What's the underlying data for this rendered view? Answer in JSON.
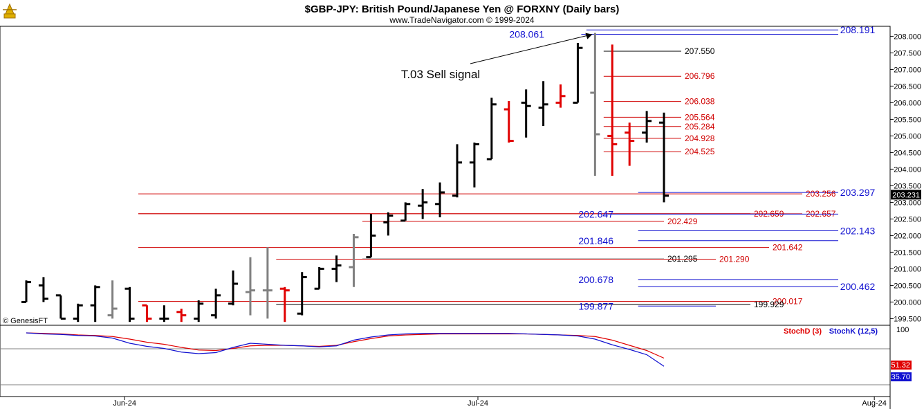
{
  "header": {
    "title": "$GBP-JPY:  British Pound/Japanese Yen @ FORXNY  (Daily bars)",
    "subtitle": "www.TradeNavigator.com © 1999-2024",
    "watermark": "© GenesisFT"
  },
  "colors": {
    "up_bar": "#000000",
    "down_bar": "#e00000",
    "neutral_bar": "#808080",
    "blue_level": "#1010d0",
    "red_level": "#d00000",
    "black_level": "#000000"
  },
  "chart_data": [
    {
      "type": "ohlc",
      "title": "$GBP-JPY:  British Pound/Japanese Yen @ FORXNY  (Daily bars)",
      "ylim": [
        199.3,
        208.3
      ],
      "y_ticks": [
        "208.000",
        "207.500",
        "207.000",
        "206.500",
        "206.000",
        "205.500",
        "205.000",
        "204.500",
        "204.000",
        "203.500",
        "203.000",
        "202.500",
        "202.000",
        "201.500",
        "201.000",
        "200.500",
        "200.000",
        "199.500"
      ],
      "x_ticks": [
        {
          "label": "Jun-24",
          "index": 4.5
        },
        {
          "label": "Jul-24",
          "index": 25
        },
        {
          "label": "Aug-24",
          "index": 48
        }
      ],
      "last_price": "203.231",
      "bars": [
        {
          "i": 0,
          "o": 200.0,
          "h": 200.65,
          "l": 200.0,
          "c": 200.6,
          "color": "black"
        },
        {
          "i": 1,
          "o": 200.5,
          "h": 200.75,
          "l": 200.0,
          "c": 200.1,
          "color": "black"
        },
        {
          "i": 2,
          "o": 200.2,
          "h": 200.2,
          "l": 199.5,
          "c": 199.5,
          "color": "black"
        },
        {
          "i": 3,
          "o": 199.5,
          "h": 199.95,
          "l": 199.4,
          "c": 199.9,
          "color": "black"
        },
        {
          "i": 4,
          "o": 199.9,
          "h": 200.5,
          "l": 199.4,
          "c": 200.45,
          "color": "black"
        },
        {
          "i": 5,
          "o": 199.6,
          "h": 200.65,
          "l": 199.5,
          "c": 199.8,
          "color": "gray"
        },
        {
          "i": 6,
          "o": 200.4,
          "h": 200.45,
          "l": 199.4,
          "c": 199.5,
          "color": "black"
        },
        {
          "i": 7,
          "o": 199.9,
          "h": 199.9,
          "l": 199.4,
          "c": 199.5,
          "color": "red"
        },
        {
          "i": 8,
          "o": 199.5,
          "h": 199.9,
          "l": 199.4,
          "c": 199.5,
          "color": "black"
        },
        {
          "i": 9,
          "o": 199.7,
          "h": 199.8,
          "l": 199.4,
          "c": 199.6,
          "color": "red"
        },
        {
          "i": 10,
          "o": 199.5,
          "h": 200.05,
          "l": 199.4,
          "c": 199.95,
          "color": "black"
        },
        {
          "i": 11,
          "o": 199.6,
          "h": 200.4,
          "l": 199.5,
          "c": 200.2,
          "color": "black"
        },
        {
          "i": 12,
          "o": 199.95,
          "h": 200.95,
          "l": 199.9,
          "c": 200.55,
          "color": "black"
        },
        {
          "i": 13,
          "o": 200.3,
          "h": 201.35,
          "l": 199.6,
          "c": 200.35,
          "color": "gray"
        },
        {
          "i": 14,
          "o": 200.35,
          "h": 201.65,
          "l": 199.5,
          "c": 200.35,
          "color": "gray"
        },
        {
          "i": 15,
          "o": 200.4,
          "h": 200.45,
          "l": 199.4,
          "c": 200.35,
          "color": "red"
        },
        {
          "i": 16,
          "o": 199.65,
          "h": 200.9,
          "l": 199.6,
          "c": 200.75,
          "color": "black"
        },
        {
          "i": 17,
          "o": 200.4,
          "h": 201.05,
          "l": 200.4,
          "c": 201.0,
          "color": "black"
        },
        {
          "i": 18,
          "o": 201.0,
          "h": 201.4,
          "l": 200.6,
          "c": 201.1,
          "color": "black"
        },
        {
          "i": 19,
          "o": 201.05,
          "h": 202.05,
          "l": 200.45,
          "c": 201.95,
          "color": "gray"
        },
        {
          "i": 20,
          "o": 201.35,
          "h": 202.65,
          "l": 201.35,
          "c": 202.0,
          "color": "black"
        },
        {
          "i": 21,
          "o": 202.4,
          "h": 202.7,
          "l": 202.0,
          "c": 202.6,
          "color": "black"
        },
        {
          "i": 22,
          "o": 202.45,
          "h": 203.0,
          "l": 202.45,
          "c": 202.95,
          "color": "black"
        },
        {
          "i": 23,
          "o": 202.9,
          "h": 203.4,
          "l": 202.5,
          "c": 203.0,
          "color": "black"
        },
        {
          "i": 24,
          "o": 202.95,
          "h": 203.6,
          "l": 202.55,
          "c": 203.3,
          "color": "black"
        },
        {
          "i": 25,
          "o": 203.2,
          "h": 204.75,
          "l": 203.15,
          "c": 204.2,
          "color": "black"
        },
        {
          "i": 26,
          "o": 204.2,
          "h": 204.8,
          "l": 203.45,
          "c": 204.75,
          "color": "black"
        },
        {
          "i": 27,
          "o": 204.3,
          "h": 206.15,
          "l": 204.3,
          "c": 205.95,
          "color": "black"
        },
        {
          "i": 28,
          "o": 205.8,
          "h": 206.05,
          "l": 204.8,
          "c": 204.85,
          "color": "red"
        },
        {
          "i": 29,
          "o": 206.0,
          "h": 206.4,
          "l": 204.95,
          "c": 205.9,
          "color": "black"
        },
        {
          "i": 30,
          "o": 205.85,
          "h": 206.65,
          "l": 205.3,
          "c": 205.95,
          "color": "black"
        },
        {
          "i": 31,
          "o": 206.0,
          "h": 206.55,
          "l": 205.85,
          "c": 206.2,
          "color": "red"
        },
        {
          "i": 32,
          "o": 206.0,
          "h": 207.8,
          "l": 206.0,
          "c": 207.65,
          "color": "black"
        },
        {
          "i": 33,
          "o": 206.3,
          "h": 208.1,
          "l": 203.8,
          "c": 205.05,
          "color": "gray"
        },
        {
          "i": 34,
          "o": 205.0,
          "h": 207.75,
          "l": 203.8,
          "c": 204.75,
          "color": "red"
        },
        {
          "i": 35,
          "o": 205.1,
          "h": 205.4,
          "l": 204.1,
          "c": 204.85,
          "color": "red"
        },
        {
          "i": 36,
          "o": 205.1,
          "h": 205.75,
          "l": 204.8,
          "c": 205.45,
          "color": "black"
        },
        {
          "i": 37,
          "o": 205.4,
          "h": 205.7,
          "l": 203.0,
          "c": 203.2,
          "color": "black"
        }
      ],
      "levels": [
        {
          "value": 208.191,
          "label": "208.191",
          "color": "blue",
          "x0_i": 32.5,
          "x1": 1212,
          "label_side": "right"
        },
        {
          "value": 208.061,
          "label": "208.061",
          "color": "blue",
          "x0_i": 32.2,
          "x1": 1212,
          "label_side": "leftlabel",
          "label_x": 787
        },
        {
          "value": 207.55,
          "label": "207.550",
          "color": "black",
          "x0_i": 33.5,
          "x1": 985,
          "label_side": "end"
        },
        {
          "value": 206.796,
          "label": "206.796",
          "color": "red",
          "x0_i": 33.5,
          "x1": 985,
          "label_side": "end"
        },
        {
          "value": 206.038,
          "label": "206.038",
          "color": "red",
          "x0_i": 33.5,
          "x1": 985,
          "label_side": "end"
        },
        {
          "value": 205.564,
          "label": "205.564",
          "color": "red",
          "x0_i": 33.5,
          "x1": 985,
          "label_side": "end"
        },
        {
          "value": 205.284,
          "label": "205.284",
          "color": "red",
          "x0_i": 33.5,
          "x1": 985,
          "label_side": "end"
        },
        {
          "value": 204.928,
          "label": "204.928",
          "color": "red",
          "x0_i": 33.5,
          "x1": 985,
          "label_side": "end"
        },
        {
          "value": 204.525,
          "label": "204.525",
          "color": "red",
          "x0_i": 33.5,
          "x1": 985,
          "label_side": "end"
        },
        {
          "value": 203.297,
          "label": "203.297",
          "color": "blue",
          "x0_i": 35.5,
          "x1": 1212,
          "label_side": "right"
        },
        {
          "value": 203.256,
          "label": "203.256",
          "color": "red",
          "x0_i": 6.5,
          "x1": 1160,
          "label_side": "end"
        },
        {
          "value": 202.659,
          "label": "202.659",
          "color": "red",
          "x0_i": 6.5,
          "x1": 1085,
          "label_side": "end"
        },
        {
          "value": 202.657,
          "label": "202.657",
          "color": "red",
          "x0_i": 6.5,
          "x1": 1160,
          "label_side": "end"
        },
        {
          "value": 202.647,
          "label": "202.647",
          "color": "blue",
          "x0_i": 33.5,
          "x1": 1212,
          "label_side": "leftlabel",
          "label_x": 887
        },
        {
          "value": 202.429,
          "label": "202.429",
          "color": "red",
          "x0_i": 19.5,
          "x1": 960,
          "label_side": "end"
        },
        {
          "value": 202.143,
          "label": "202.143",
          "color": "blue",
          "x0_i": 35.5,
          "x1": 1212,
          "label_side": "right"
        },
        {
          "value": 201.846,
          "label": "201.846",
          "color": "blue",
          "x0_i": 35.5,
          "x1": 1212,
          "label_side": "leftlabel",
          "label_x": 887
        },
        {
          "value": 201.642,
          "label": "201.642",
          "color": "red",
          "x0_i": 6.5,
          "x1": 1112,
          "label_side": "end"
        },
        {
          "value": 201.295,
          "label": "201.295",
          "color": "black",
          "x0_i": 19.5,
          "x1": 960,
          "label_side": "end"
        },
        {
          "value": 201.29,
          "label": "201.290",
          "color": "red",
          "x0_i": 14.5,
          "x1": 1035,
          "label_side": "end"
        },
        {
          "value": 200.678,
          "label": "200.678",
          "color": "blue",
          "x0_i": 35.5,
          "x1": 1212,
          "label_side": "leftlabel",
          "label_x": 887
        },
        {
          "value": 200.462,
          "label": "200.462",
          "color": "blue",
          "x0_i": 35.5,
          "x1": 1212,
          "label_side": "right"
        },
        {
          "value": 200.017,
          "label": "200.017",
          "color": "red",
          "x0_i": 6.5,
          "x1": 1112,
          "label_side": "end"
        },
        {
          "value": 199.929,
          "label": "199.929",
          "color": "black",
          "x0_i": 14.5,
          "x1": 1085,
          "label_side": "end"
        },
        {
          "value": 199.877,
          "label": "199.877",
          "color": "blue",
          "x0_i": 35.5,
          "x1": 1035,
          "label_side": "leftlabel",
          "label_x": 887
        }
      ],
      "annotation": {
        "text": "T.03 Sell signal",
        "from_value": 207.65,
        "from_i": 28.2,
        "to_i": 33.0,
        "to_value": 208.1
      }
    },
    {
      "type": "line",
      "title": "StochD (3)  StochK (12,5)",
      "ylim": [
        0,
        100
      ],
      "y_ticks": [
        "100"
      ],
      "last_values": {
        "StochD (3)": "51.32",
        "StochK (12,5)": "35.70"
      },
      "x": [
        0,
        1,
        2,
        3,
        4,
        5,
        6,
        7,
        8,
        9,
        10,
        11,
        12,
        13,
        14,
        15,
        16,
        17,
        18,
        19,
        20,
        21,
        22,
        23,
        24,
        25,
        26,
        27,
        28,
        29,
        30,
        31,
        32,
        33,
        34,
        35,
        36,
        37
      ],
      "series": [
        {
          "name": "StochD (3)",
          "color": "#e00000",
          "values": [
            100,
            99,
            98,
            96,
            95,
            93,
            88,
            82,
            78,
            72,
            67,
            66,
            70,
            75,
            76,
            76,
            75,
            74,
            76,
            83,
            89,
            94,
            96,
            97,
            98,
            98,
            98,
            98,
            98,
            98,
            97,
            96,
            95,
            93,
            86,
            76,
            66,
            51.32
          ]
        },
        {
          "name": "StochK (12,5)",
          "color": "#1010d0",
          "values": [
            100,
            98,
            97,
            95,
            94,
            90,
            80,
            74,
            70,
            63,
            60,
            62,
            72,
            80,
            78,
            76,
            75,
            73,
            75,
            86,
            92,
            96,
            98,
            99,
            99,
            99,
            99,
            99,
            99,
            98,
            97,
            96,
            94,
            88,
            77,
            68,
            58,
            35.7
          ]
        }
      ]
    }
  ]
}
